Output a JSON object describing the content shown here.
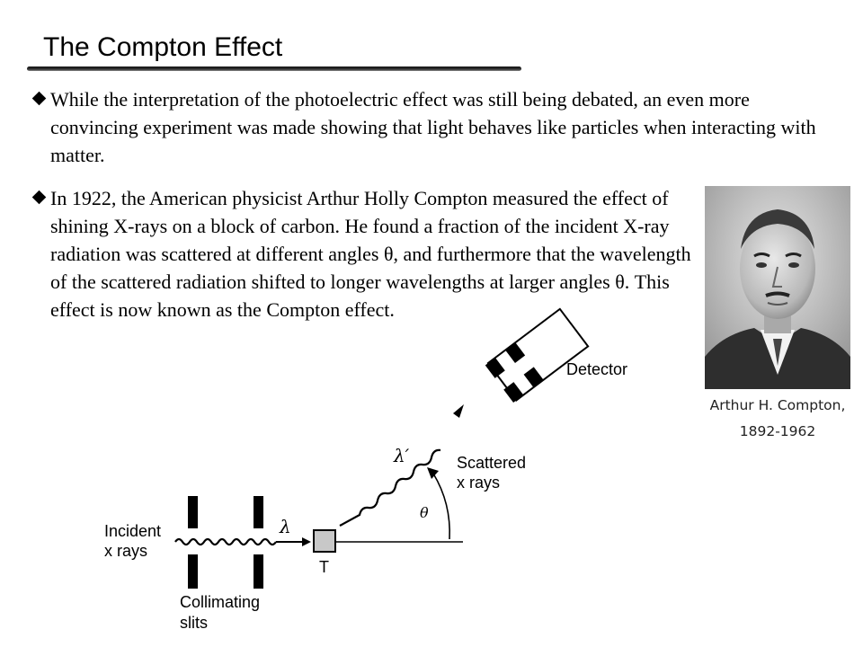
{
  "title": "The Compton Effect",
  "bullets": [
    "While the interpretation of the photoelectric effect was still being debated, an even more convincing experiment was made showing that light behaves like particles when interacting with matter.",
    "In 1922, the American physicist Arthur Holly Compton measured the effect of shining X-rays on a block of carbon.  He found a fraction of the incident X-ray radiation was scattered at different angles θ, and furthermore that the wavelength of the scattered radiation shifted to longer wavelengths at larger angles θ.  This effect is now known as the Compton effect."
  ],
  "photo": {
    "caption_line1": "Arthur H. Compton,",
    "caption_line2": "1892-1962"
  },
  "diagram": {
    "incident_line1": "Incident",
    "incident_line2": "x rays",
    "lambda": "λ",
    "target": "T",
    "collimating_line1": "Collimating",
    "collimating_line2": "slits",
    "lambda_prime": "λ′",
    "scattered_line1": "Scattered",
    "scattered_line2": "x rays",
    "theta": "θ",
    "detector": "Detector"
  }
}
